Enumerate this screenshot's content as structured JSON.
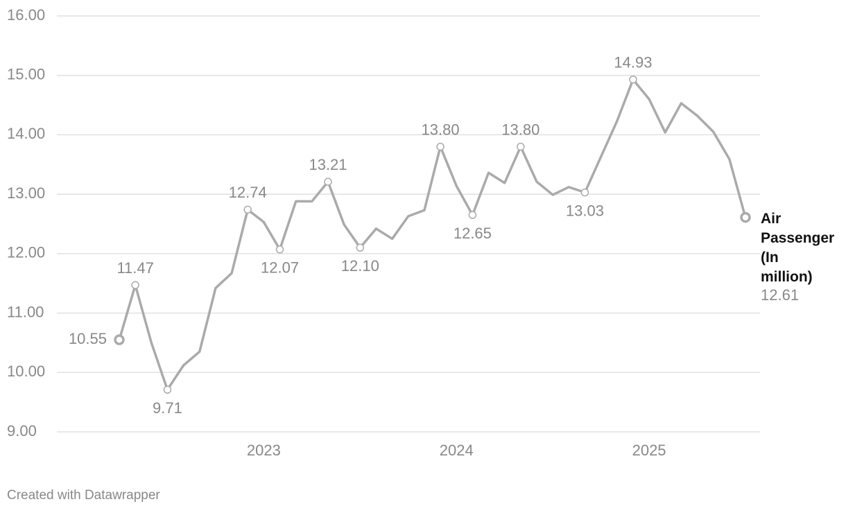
{
  "chart_data": {
    "type": "line",
    "x": [
      "2022-04",
      "2022-05",
      "2022-06",
      "2022-07",
      "2022-08",
      "2022-09",
      "2022-10",
      "2022-11",
      "2022-12",
      "2023-01",
      "2023-02",
      "2023-03",
      "2023-04",
      "2023-05",
      "2023-06",
      "2023-07",
      "2023-08",
      "2023-09",
      "2023-10",
      "2023-11",
      "2023-12",
      "2024-01",
      "2024-02",
      "2024-03",
      "2024-04",
      "2024-05",
      "2024-06",
      "2024-07",
      "2024-08",
      "2024-09",
      "2024-10",
      "2024-11",
      "2024-12",
      "2025-01",
      "2025-02",
      "2025-03",
      "2025-04",
      "2025-05",
      "2025-06",
      "2025-07"
    ],
    "series": [
      {
        "name": "Air Passenger (In million)",
        "color": "#aaaaaa",
        "values": [
          10.55,
          11.47,
          10.5,
          9.71,
          10.12,
          10.35,
          11.42,
          11.67,
          12.74,
          12.53,
          12.07,
          12.88,
          12.88,
          13.21,
          12.49,
          12.1,
          12.42,
          12.25,
          12.63,
          12.73,
          13.8,
          13.14,
          12.65,
          13.36,
          13.19,
          13.8,
          13.21,
          12.99,
          13.12,
          13.03,
          13.63,
          14.23,
          14.93,
          14.6,
          14.04,
          14.53,
          14.32,
          14.05,
          13.59,
          12.61
        ],
        "value_labels": [
          "10.55",
          "11.47",
          null,
          "9.71",
          null,
          null,
          null,
          null,
          "12.74",
          null,
          "12.07",
          null,
          null,
          "13.21",
          null,
          "12.10",
          null,
          null,
          null,
          null,
          "13.80",
          null,
          "12.65",
          null,
          null,
          "13.80",
          null,
          null,
          null,
          "13.03",
          null,
          null,
          "14.93",
          null,
          null,
          null,
          null,
          null,
          null,
          "12.61"
        ]
      }
    ],
    "ylim": [
      9,
      16
    ],
    "yticks": [
      {
        "value": 9,
        "label": "9.00"
      },
      {
        "value": 10,
        "label": "10.00"
      },
      {
        "value": 11,
        "label": "11.00"
      },
      {
        "value": 12,
        "label": "12.00"
      },
      {
        "value": 13,
        "label": "13.00"
      },
      {
        "value": 14,
        "label": "14.00"
      },
      {
        "value": 15,
        "label": "15.00"
      },
      {
        "value": 16,
        "label": "16.00"
      }
    ],
    "xticks": [
      {
        "value": "2023-01",
        "label": "2023"
      },
      {
        "value": "2024-01",
        "label": "2024"
      },
      {
        "value": "2025-01",
        "label": "2025"
      }
    ],
    "grid": true,
    "footer": "Created with Datawrapper"
  }
}
